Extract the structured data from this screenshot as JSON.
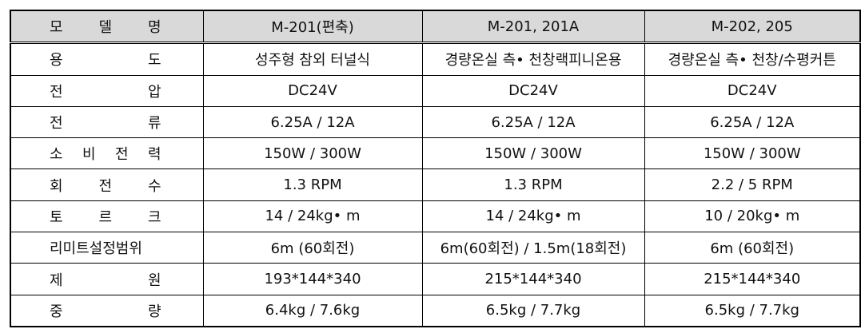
{
  "table": {
    "header": [
      "모 델 명",
      "M-201(편축)",
      "M-201, 201A",
      "M-202, 205"
    ],
    "rows": [
      [
        "용 도",
        "성주형 참외 터널식",
        "경량온실 측• 천창랙피니온용",
        "경량온실 측• 천창/수평커튼"
      ],
      [
        "전 압",
        "DC24V",
        "DC24V",
        "DC24V"
      ],
      [
        "전 류",
        "6.25A / 12A",
        "6.25A / 12A",
        "6.25A / 12A"
      ],
      [
        "소 비 전 력",
        "150W / 300W",
        "150W / 300W",
        "150W / 300W"
      ],
      [
        "회 전 수",
        "1.3 RPM",
        "1.3 RPM",
        "2.2 / 5 RPM"
      ],
      [
        "토 르 크",
        "14 / 24kg• m",
        "14 / 24kg• m",
        "10 / 20kg• m"
      ],
      [
        "리미트설정범위",
        "6m (60회전)",
        "6m(60회전) / 1.5m(18회전)",
        "6m (60회전)"
      ],
      [
        "제 원",
        "193*144*340",
        "215*144*340",
        "215*144*340"
      ],
      [
        "중 량",
        "6.4kg / 7.6kg",
        "6.5kg / 7.7kg",
        "6.5kg / 7.7kg"
      ]
    ]
  }
}
